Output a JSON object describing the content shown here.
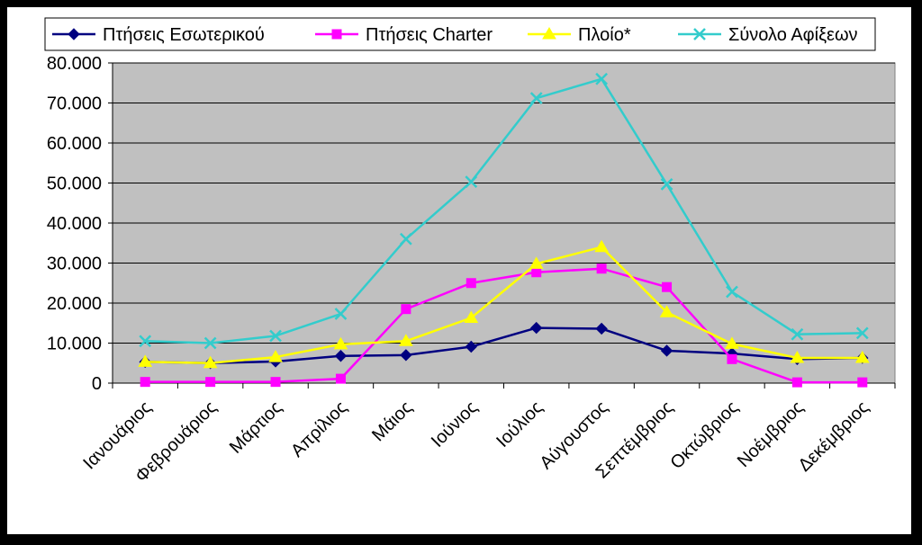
{
  "chart_data": {
    "type": "line",
    "title": "",
    "xlabel": "",
    "ylabel": "",
    "categories": [
      "Ιανουάριος",
      "Φεβρουάριος",
      "Μάρτιος",
      "Απρίλιος",
      "Μάιος",
      "Ιούνιος",
      "Ιούλιος",
      "Αύγουστος",
      "Σεπτέμβριος",
      "Οκτώβριος",
      "Νοέμβριος",
      "Δεκέμβριος"
    ],
    "ylim": [
      0,
      80000
    ],
    "yticks": [
      0,
      10000,
      20000,
      30000,
      40000,
      50000,
      60000,
      70000,
      80000
    ],
    "ytick_labels": [
      "0",
      "10.000",
      "20.000",
      "30.000",
      "40.000",
      "50.000",
      "60.000",
      "70.000",
      "80.000"
    ],
    "grid": true,
    "plot_background": "#c0c0c0",
    "legend_position": "top",
    "series": [
      {
        "name": "Πτήσεις Εσωτερικού",
        "color": "#000080",
        "marker": "diamond",
        "values": [
          5300,
          5000,
          5400,
          6800,
          7000,
          9100,
          13800,
          13600,
          8100,
          7400,
          6000,
          6300
        ]
      },
      {
        "name": "Πτήσεις Charter",
        "color": "#ff00ff",
        "marker": "square",
        "values": [
          300,
          300,
          300,
          1100,
          18500,
          25000,
          27700,
          28600,
          24000,
          6000,
          200,
          200
        ]
      },
      {
        "name": "Πλοίο*",
        "color": "#ffff00",
        "marker": "triangle",
        "values": [
          5300,
          5000,
          6500,
          9700,
          10500,
          16300,
          29800,
          34000,
          17700,
          9800,
          6300,
          6300
        ]
      },
      {
        "name": "Σύνολο Αφίξεων",
        "color": "#33cccc",
        "marker": "x",
        "values": [
          10500,
          10000,
          11800,
          17300,
          36000,
          50300,
          71200,
          76000,
          49700,
          22800,
          12200,
          12500
        ]
      }
    ]
  }
}
